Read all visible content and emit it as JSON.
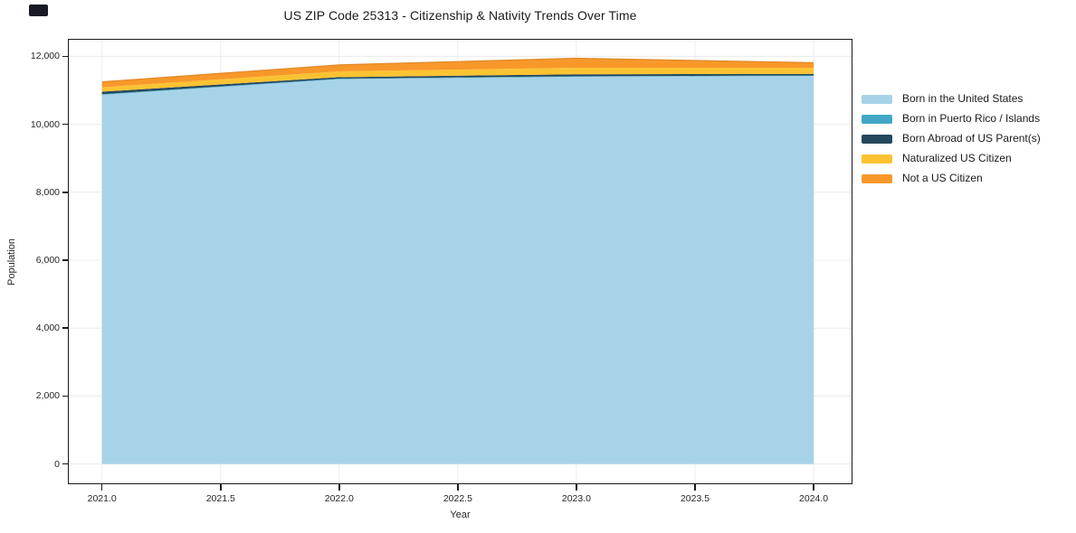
{
  "title": "US ZIP Code 25313 - Citizenship & Nativity Trends Over Time",
  "chart_data": {
    "type": "area",
    "stacked": true,
    "title": "US ZIP Code 25313 - Citizenship & Nativity Trends Over Time",
    "xlabel": "Year",
    "ylabel": "Population",
    "x": [
      2021,
      2022,
      2023,
      2024
    ],
    "series": [
      {
        "name": "Born in the United States",
        "color": "#a7d3e8",
        "values": [
          10870,
          11330,
          11400,
          11430
        ]
      },
      {
        "name": "Born in Puerto Rico / Islands",
        "color": "#42a6c5",
        "values": [
          20,
          15,
          15,
          10
        ]
      },
      {
        "name": "Born Abroad of US Parent(s)",
        "color": "#25485e",
        "values": [
          70,
          45,
          60,
          45
        ]
      },
      {
        "name": "Naturalized US Citizen",
        "color": "#fbc332",
        "values": [
          130,
          170,
          190,
          180
        ]
      },
      {
        "name": "Not a US Citizen",
        "color": "#f8982a",
        "values": [
          160,
          190,
          280,
          150
        ]
      }
    ],
    "x_ticks": [
      "2021.0",
      "2021.5",
      "2022.0",
      "2022.5",
      "2023.0",
      "2023.5",
      "2024.0"
    ],
    "x_tick_values": [
      2021,
      2021.5,
      2022,
      2022.5,
      2023,
      2023.5,
      2024
    ],
    "y_ticks": [
      "0",
      "2,000",
      "4,000",
      "6,000",
      "8,000",
      "10,000",
      "12,000"
    ],
    "y_tick_values": [
      0,
      2000,
      4000,
      6000,
      8000,
      10000,
      12000
    ],
    "xlim": [
      2020.86,
      2024.16
    ],
    "ylim": [
      -570,
      12490
    ],
    "grid": true,
    "legend_position": "right",
    "style": {
      "grid_color": "#ececec",
      "spine_color": "#1a1a1a",
      "text_color": "#262626",
      "background": "#ffffff"
    }
  }
}
